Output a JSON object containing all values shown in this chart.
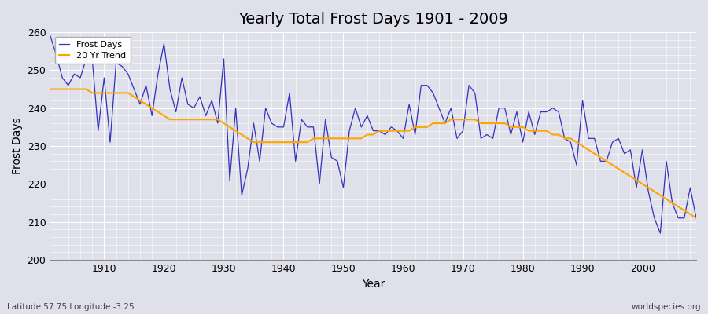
{
  "title": "Yearly Total Frost Days 1901 - 2009",
  "xlabel": "Year",
  "ylabel": "Frost Days",
  "subtitle_left": "Latitude 57.75 Longitude -3.25",
  "subtitle_right": "worldspecies.org",
  "ylim": [
    200,
    260
  ],
  "xlim": [
    1901,
    2009
  ],
  "line_color": "#3333bb",
  "trend_color": "#FFA500",
  "background_color": "#dfe0ea",
  "grid_color": "#ffffff",
  "years": [
    1901,
    1902,
    1903,
    1904,
    1905,
    1906,
    1907,
    1908,
    1909,
    1910,
    1911,
    1912,
    1913,
    1914,
    1915,
    1916,
    1917,
    1918,
    1919,
    1920,
    1921,
    1922,
    1923,
    1924,
    1925,
    1926,
    1927,
    1928,
    1929,
    1930,
    1931,
    1932,
    1933,
    1934,
    1935,
    1936,
    1937,
    1938,
    1939,
    1940,
    1941,
    1942,
    1943,
    1944,
    1945,
    1946,
    1947,
    1948,
    1949,
    1950,
    1951,
    1952,
    1953,
    1954,
    1955,
    1956,
    1957,
    1958,
    1959,
    1960,
    1961,
    1962,
    1963,
    1964,
    1965,
    1966,
    1967,
    1968,
    1969,
    1970,
    1971,
    1972,
    1973,
    1974,
    1975,
    1976,
    1977,
    1978,
    1979,
    1980,
    1981,
    1982,
    1983,
    1984,
    1985,
    1986,
    1987,
    1988,
    1989,
    1990,
    1991,
    1992,
    1993,
    1994,
    1995,
    1996,
    1997,
    1998,
    1999,
    2000,
    2001,
    2002,
    2003,
    2004,
    2005,
    2006,
    2007,
    2008,
    2009
  ],
  "frost_days": [
    259,
    254,
    248,
    246,
    249,
    248,
    253,
    253,
    234,
    248,
    231,
    252,
    251,
    249,
    245,
    241,
    246,
    238,
    249,
    257,
    245,
    239,
    248,
    241,
    240,
    243,
    238,
    242,
    236,
    253,
    221,
    240,
    217,
    224,
    236,
    226,
    240,
    236,
    235,
    235,
    244,
    226,
    237,
    235,
    235,
    220,
    237,
    227,
    226,
    219,
    234,
    240,
    235,
    238,
    234,
    234,
    233,
    235,
    234,
    232,
    241,
    233,
    246,
    246,
    244,
    240,
    236,
    240,
    232,
    234,
    246,
    244,
    232,
    233,
    232,
    240,
    240,
    233,
    239,
    231,
    239,
    233,
    239,
    239,
    240,
    239,
    232,
    231,
    225,
    242,
    232,
    232,
    226,
    226,
    231,
    232,
    228,
    229,
    219,
    229,
    218,
    211,
    207,
    226,
    215,
    211,
    211,
    219,
    211
  ],
  "trend_values": [
    245,
    245,
    245,
    245,
    245,
    245,
    245,
    244,
    244,
    244,
    244,
    244,
    244,
    244,
    243,
    242,
    241,
    240,
    239,
    238,
    237,
    237,
    237,
    237,
    237,
    237,
    237,
    237,
    237,
    236,
    235,
    234,
    233,
    232,
    231,
    231,
    231,
    231,
    231,
    231,
    231,
    231,
    231,
    231,
    232,
    232,
    232,
    232,
    232,
    232,
    232,
    232,
    232,
    233,
    233,
    234,
    234,
    234,
    234,
    234,
    234,
    235,
    235,
    235,
    236,
    236,
    236,
    237,
    237,
    237,
    237,
    237,
    236,
    236,
    236,
    236,
    236,
    235,
    235,
    235,
    234,
    234,
    234,
    234,
    233,
    233,
    232,
    232,
    231,
    230,
    229,
    228,
    227,
    226,
    225,
    224,
    223,
    222,
    221,
    220,
    219,
    218,
    217,
    216,
    215,
    214,
    213,
    212,
    211
  ]
}
